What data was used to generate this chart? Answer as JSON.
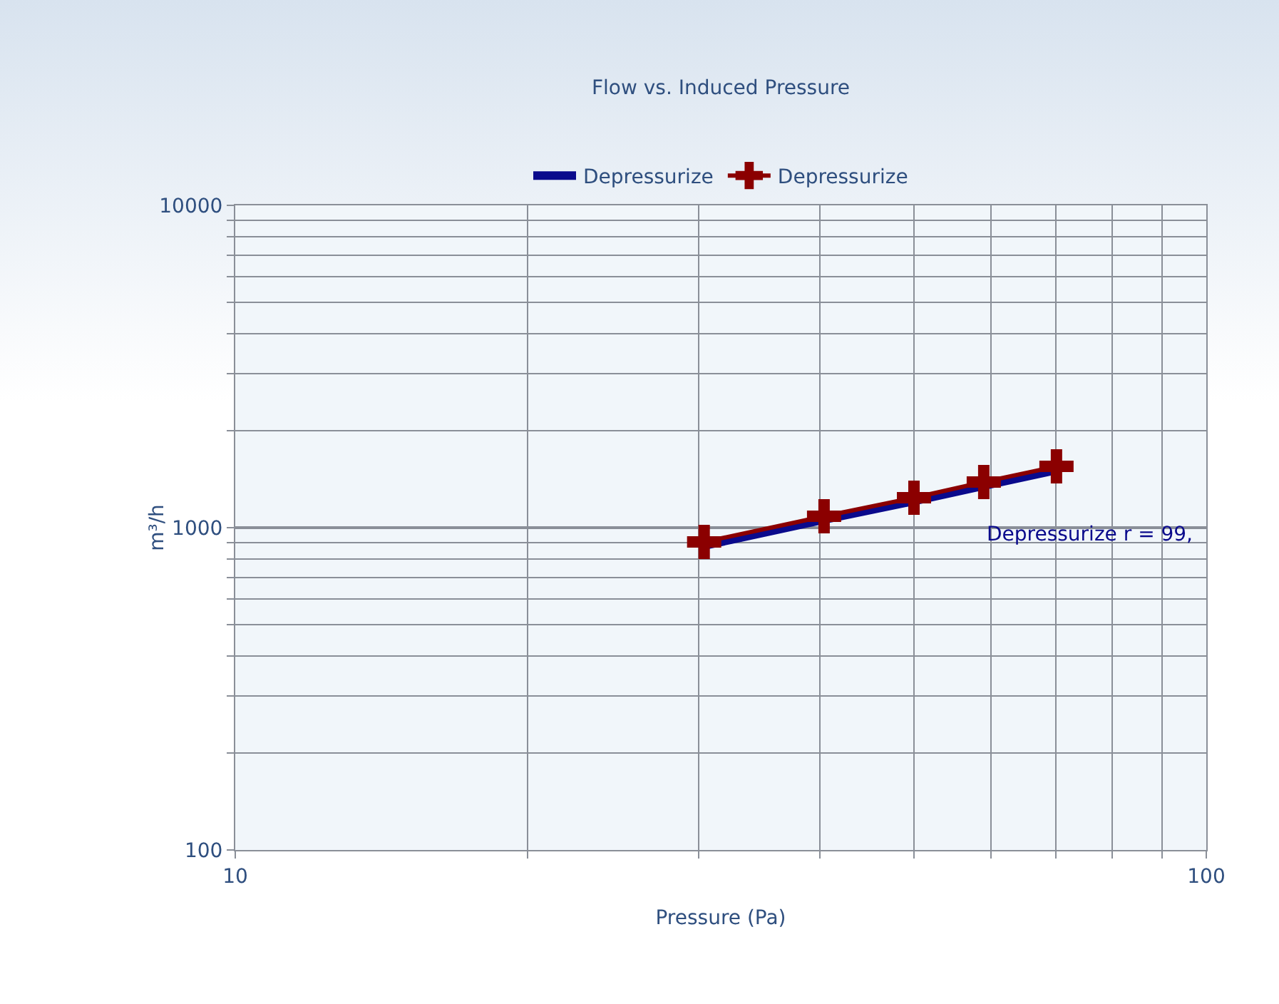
{
  "chart_data": {
    "type": "line",
    "title": "Flow vs. Induced Pressure",
    "xlabel": "Pressure (Pa)",
    "ylabel": "m³/h",
    "log": "xy",
    "x": [
      30.4,
      40.4,
      50,
      59,
      70.1
    ],
    "series": [
      {
        "name": "Depressurize",
        "color": "#0a0a8c",
        "values": [
          880,
          1060,
          1210,
          1350,
          1510
        ],
        "marker": "none"
      },
      {
        "name": "Depressurize",
        "color": "#8b0000",
        "values": [
          903,
          1085,
          1239,
          1386,
          1549
        ],
        "marker": "cross"
      }
    ],
    "xlim": [
      10,
      100
    ],
    "xticks": [
      10,
      100
    ],
    "ylim": [
      100,
      10000
    ],
    "yticks": [
      100,
      1000,
      10000
    ],
    "grid": true,
    "legend": "top",
    "annotations": [
      "Depressurize r = 99,"
    ]
  }
}
